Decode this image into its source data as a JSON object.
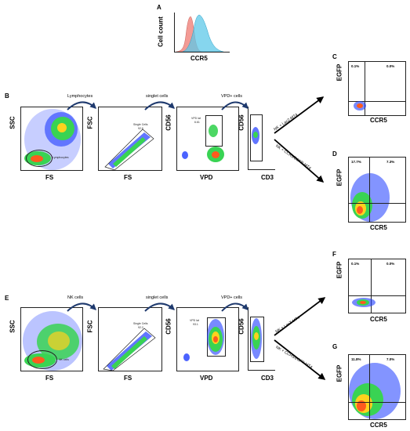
{
  "colors": {
    "hist_red": "#f0827a",
    "hist_blue": "#5ec8e8",
    "dense": "#39d353",
    "core": "#ff5a1e",
    "scatter": "#1e3cff"
  },
  "panelA": {
    "letter": "A",
    "ylabel": "Cell count",
    "xlabel": "CCR5"
  },
  "panelB": {
    "letter": "B",
    "steps": [
      "Lymphocytes",
      "singlet cells",
      "VPD+ cells"
    ],
    "plots": [
      {
        "ylabel": "SSC",
        "xlabel": "FS",
        "gate": "Lymphocytes"
      },
      {
        "ylabel": "FSC",
        "xlabel": "FS",
        "gate": "Single Cells",
        "gate_value": "92.6"
      },
      {
        "ylabel": "CD56",
        "xlabel": "VPD",
        "gate": "VPD lat",
        "gate_value": "6.61"
      },
      {
        "ylabel": "CD56",
        "xlabel": "CD3"
      }
    ],
    "arrow_up": "NK + LacZ-MT4",
    "arrow_down": "NK + CCR5/EGFP-MT4"
  },
  "panelC": {
    "letter": "C",
    "ylabel": "EGFP",
    "xlabel": "CCR5",
    "q_ul": "0.1%",
    "q_ur": "0.0%"
  },
  "panelD": {
    "letter": "D",
    "ylabel": "EGFP",
    "xlabel": "CCR5",
    "q_ul": "17.7%",
    "q_ur": "7.3%"
  },
  "panelE": {
    "letter": "E",
    "steps": [
      "NK cells",
      "singlet cells",
      "VPD+ cells"
    ],
    "plots": [
      {
        "ylabel": "SSC",
        "xlabel": "FS",
        "gate": "NK cells"
      },
      {
        "ylabel": "FSC",
        "xlabel": "FS",
        "gate": "Single Cells",
        "gate_value": "92.2"
      },
      {
        "ylabel": "CD56",
        "xlabel": "VPD",
        "gate": "VPD lat",
        "gate_value": "93.1"
      },
      {
        "ylabel": "CD56",
        "xlabel": "CD3"
      }
    ],
    "arrow_up": "NK + LacZ-MT4",
    "arrow_down": "NK + CCR5/EGFP-MT4"
  },
  "panelF": {
    "letter": "F",
    "ylabel": "EGFP",
    "xlabel": "CCR5",
    "q_ul": "0.1%",
    "q_ur": "0.0%"
  },
  "panelG": {
    "letter": "G",
    "ylabel": "EGFP",
    "xlabel": "CCR5",
    "q_ul": "11.8%",
    "q_ur": "7.0%"
  }
}
